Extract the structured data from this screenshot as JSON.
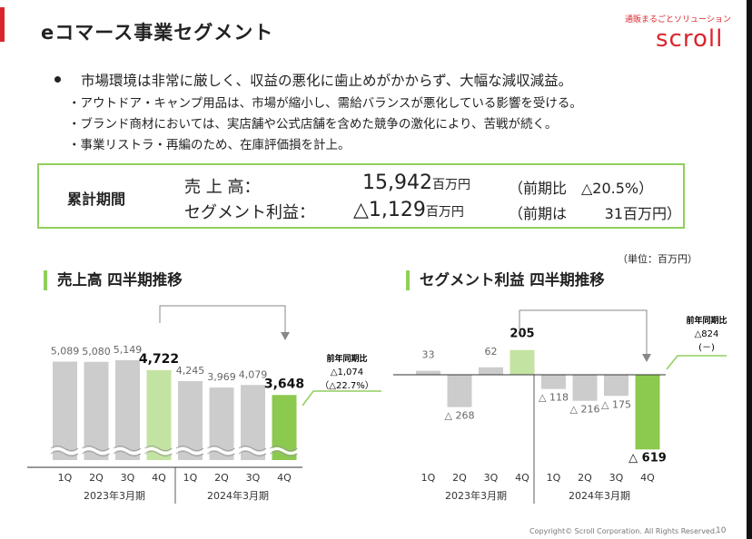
{
  "header": {
    "title": "eコマース事業セグメント",
    "logo_tagline": "通販まるごとソリューション",
    "logo_text": "scroll"
  },
  "commentary": {
    "main": "市場環境は非常に厳しく、収益の悪化に歯止めがかからず、大幅な減収減益。",
    "subs": [
      "・アウトドア・キャンプ用品は、市場が縮小し、需給バランスが悪化している影響を受ける。",
      "・ブランド商材においては、実店舗や公式店舗を含めた競争の激化により、苦戦が続く。",
      "・事業リストラ・再編のため、在庫評価損を計上。"
    ]
  },
  "summary": {
    "period_label": "累計期間",
    "sales_label": "売 上 高：",
    "sales_value": "15,942",
    "sales_unit": "百万円",
    "sales_compare": "（前期比　△20.5%）",
    "profit_label": "セグメント利益：",
    "profit_value": "△1,129",
    "profit_unit": "百万円",
    "profit_compare_prefix": "（前期は",
    "profit_compare_value": "31",
    "profit_compare_unit": "百万円）"
  },
  "unit_note": "（単位：百万円）",
  "chart_data": [
    {
      "type": "bar",
      "title": "売上高 四半期推移",
      "categories": [
        "1Q",
        "2Q",
        "3Q",
        "4Q",
        "1Q",
        "2Q",
        "3Q",
        "4Q"
      ],
      "fiscal_years": [
        "2023年3月期",
        "2024年3月期"
      ],
      "values": [
        5089,
        5080,
        5149,
        4722,
        4245,
        3969,
        4079,
        3648
      ],
      "labels": [
        "5,089",
        "5,080",
        "5,149",
        "4,722",
        "4,245",
        "3,969",
        "4,079",
        "3,648"
      ],
      "highlight_indices": [
        3,
        7
      ],
      "yoy_title": "前年同期比",
      "yoy_value": "△1,074",
      "yoy_pct": "（△22.7%）",
      "axis_break": true,
      "colors": {
        "normal": "#cccccc",
        "prev_q4": "#c3e3a2",
        "curr_q4": "#8cc94f",
        "line": "#8fcf5a"
      }
    },
    {
      "type": "bar",
      "title": "セグメント利益 四半期推移",
      "categories": [
        "1Q",
        "2Q",
        "3Q",
        "4Q",
        "1Q",
        "2Q",
        "3Q",
        "4Q"
      ],
      "fiscal_years": [
        "2023年3月期",
        "2024年3月期"
      ],
      "values": [
        33,
        -268,
        62,
        205,
        -118,
        -216,
        -175,
        -619
      ],
      "labels": [
        "33",
        "△ 268",
        "62",
        "205",
        "△ 118",
        "△ 216",
        "△ 175",
        "△ 619"
      ],
      "highlight_indices": [
        3,
        7
      ],
      "yoy_title": "前年同期比",
      "yoy_value": "△824",
      "yoy_pct": "(－)",
      "colors": {
        "normal": "#cccccc",
        "prev_q4": "#c3e3a2",
        "curr_q4": "#8cc94f",
        "line": "#8fcf5a"
      }
    }
  ],
  "footer": {
    "copyright": "Copyright© Scroll Corporation. All Rights Reserved.",
    "page": "10"
  }
}
